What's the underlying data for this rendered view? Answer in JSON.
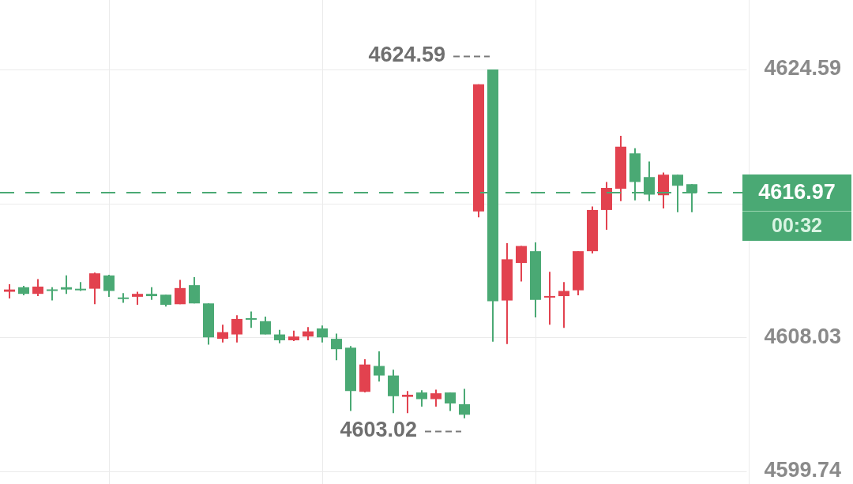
{
  "chart_data": {
    "type": "candlestick",
    "categories": [
      null,
      null,
      null,
      null,
      null,
      null,
      null,
      null,
      null,
      null,
      null,
      null,
      null,
      null,
      null,
      null,
      null,
      null,
      null,
      null,
      null,
      null,
      null,
      null,
      null,
      null,
      null,
      null,
      null,
      null,
      null,
      null,
      null,
      null,
      null,
      null,
      null,
      null,
      null,
      null,
      null,
      null,
      null,
      null,
      null,
      null,
      null,
      null,
      null
    ],
    "ohlc": [
      [
        4610.84,
        4611.3,
        4610.43,
        4610.98
      ],
      [
        4611.12,
        4611.21,
        4610.62,
        4610.71
      ],
      [
        4610.71,
        4611.62,
        4610.57,
        4611.16
      ],
      [
        4610.98,
        4611.12,
        4610.3,
        4610.89
      ],
      [
        4611.12,
        4611.85,
        4610.71,
        4610.98
      ],
      [
        4610.98,
        4611.44,
        4610.89,
        4610.93
      ],
      [
        4611.03,
        4612.03,
        4610.07,
        4611.98
      ],
      [
        4611.85,
        4611.89,
        4610.53,
        4610.89
      ],
      [
        4610.48,
        4610.75,
        4610.16,
        4610.39
      ],
      [
        4610.53,
        4610.84,
        4610.03,
        4610.71
      ],
      [
        4610.71,
        4611.12,
        4610.34,
        4610.57
      ],
      [
        4610.66,
        4610.66,
        4609.93,
        4610.03
      ],
      [
        4610.07,
        4611.57,
        4610.07,
        4611.07
      ],
      [
        4611.25,
        4611.75,
        4610.12,
        4610.12
      ],
      [
        4610.12,
        4610.12,
        4607.57,
        4608.02
      ],
      [
        4607.93,
        4608.8,
        4607.7,
        4608.34
      ],
      [
        4608.2,
        4609.39,
        4607.7,
        4609.16
      ],
      [
        4609.21,
        4609.62,
        4608.61,
        4609.11
      ],
      [
        4609.02,
        4609.3,
        4608.2,
        4608.2
      ],
      [
        4608.2,
        4608.48,
        4607.66,
        4607.84
      ],
      [
        4607.84,
        4608.43,
        4607.79,
        4608.07
      ],
      [
        4608.07,
        4608.66,
        4607.84,
        4608.39
      ],
      [
        4608.57,
        4608.75,
        4607.7,
        4608.02
      ],
      [
        4607.93,
        4608.25,
        4606.61,
        4607.29
      ],
      [
        4607.38,
        4607.48,
        4603.47,
        4604.7
      ],
      [
        4604.65,
        4606.66,
        4604.61,
        4606.34
      ],
      [
        4606.25,
        4607.16,
        4605.29,
        4605.66
      ],
      [
        4605.66,
        4606.02,
        4603.33,
        4604.38
      ],
      [
        4604.34,
        4604.7,
        4603.33,
        4604.47
      ],
      [
        4604.61,
        4604.75,
        4603.74,
        4604.2
      ],
      [
        4604.2,
        4604.79,
        4603.74,
        4604.56
      ],
      [
        4604.61,
        4604.61,
        4603.47,
        4603.93
      ],
      [
        4603.88,
        4604.84,
        4603.02,
        4603.24
      ],
      [
        4615.81,
        4623.68,
        4615.44,
        4623.68
      ],
      [
        4624.59,
        4624.59,
        4607.75,
        4610.25
      ],
      [
        4610.3,
        4613.85,
        4607.61,
        4612.85
      ],
      [
        4612.62,
        4613.67,
        4611.48,
        4613.67
      ],
      [
        4613.35,
        4613.89,
        4609.25,
        4610.34
      ],
      [
        4610.48,
        4612.07,
        4608.8,
        4610.53
      ],
      [
        4610.57,
        4611.44,
        4608.61,
        4610.89
      ],
      [
        4610.93,
        4613.35,
        4610.62,
        4613.35
      ],
      [
        4613.35,
        4616.12,
        4613.21,
        4615.9
      ],
      [
        4615.9,
        4617.63,
        4614.67,
        4617.26
      ],
      [
        4617.22,
        4620.49,
        4616.44,
        4619.81
      ],
      [
        4619.4,
        4619.72,
        4616.49,
        4617.63
      ],
      [
        4617.94,
        4618.9,
        4616.44,
        4616.85
      ],
      [
        4616.81,
        4618.22,
        4615.99,
        4618.08
      ],
      [
        4618.08,
        4618.08,
        4615.76,
        4617.4
      ],
      [
        4617.49,
        4617.49,
        4615.76,
        4616.97
      ]
    ],
    "colors": [
      "#e2424f",
      "#4aa974",
      "#e2424f",
      "#4aa974",
      "#4aa974",
      "#4aa974",
      "#e2424f",
      "#4aa974",
      "#4aa974",
      "#e2424f",
      "#4aa974",
      "#4aa974",
      "#e2424f",
      "#4aa974",
      "#4aa974",
      "#e2424f",
      "#e2424f",
      "#4aa974",
      "#4aa974",
      "#4aa974",
      "#e2424f",
      "#e2424f",
      "#4aa974",
      "#4aa974",
      "#4aa974",
      "#e2424f",
      "#4aa974",
      "#4aa974",
      "#e2424f",
      "#4aa974",
      "#e2424f",
      "#4aa974",
      "#4aa974",
      "#e2424f",
      "#4aa974",
      "#e2424f",
      "#e2424f",
      "#4aa974",
      "#e2424f",
      "#e2424f",
      "#e2424f",
      "#e2424f",
      "#e2424f",
      "#e2424f",
      "#4aa974",
      "#4aa974",
      "#e2424f",
      "#4aa974",
      "#4aa974"
    ],
    "ylim": [
      4599.74,
      4624.59
    ],
    "yticks": [
      4624.59,
      {
        "value": 4616.31,
        "label": null
      },
      4608.03,
      4599.74
    ],
    "grid": true,
    "tick_labels": "y",
    "ref_lines": [
      {
        "axis": "y",
        "value": 4616.97,
        "label": "4616.97",
        "color": "#4aa974",
        "line_style": "dashed"
      }
    ],
    "annotations": [
      "4624.59",
      "4603.02",
      "00:32"
    ]
  }
}
